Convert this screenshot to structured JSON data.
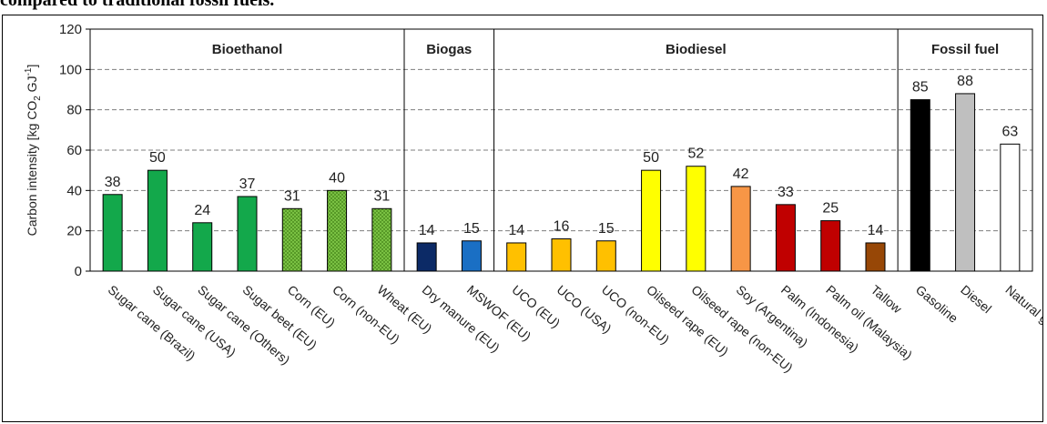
{
  "caption": "compared to traditional fossil fuels.",
  "chart_data": {
    "type": "bar",
    "title": "",
    "xlabel": "",
    "ylabel": "Carbon intensity [kg CO2 GJ-1]",
    "ylabel_parts": {
      "main": "Carbon intensity [kg CO",
      "sub": "2",
      "mid": " GJ",
      "sup": "-1",
      "end": "]"
    },
    "ylim": [
      0,
      120
    ],
    "yticks": [
      "0",
      "20",
      "40",
      "60",
      "80",
      "100",
      "120"
    ],
    "grid": "dashed horizontal",
    "groups": [
      {
        "name": "Bioethanol",
        "start": 0,
        "end": 6
      },
      {
        "name": "Biogas",
        "start": 7,
        "end": 8
      },
      {
        "name": "Biodiesel",
        "start": 9,
        "end": 17
      },
      {
        "name": "Fossil fuel",
        "start": 18,
        "end": 20
      }
    ],
    "categories": [
      "Sugar cane (Brazil)",
      "Sugar cane (USA)",
      "Sugar cane (Others)",
      "Sugar beet (EU)",
      "Corn (EU)",
      "Corn (non-EU)",
      "Wheat (EU)",
      "Dry manure (EU)",
      "MSWOF (EU)",
      "UCO (EU)",
      "UCO (USA)",
      "UCO (non-EU)",
      "Oilseed rape (EU)",
      "Oilseed rape (non-EU)",
      "Soy (Argentina)",
      "Palm (Indonesia)",
      "Palm oil (Malaysia)",
      "Tallow",
      "Gasoline",
      "Diesel",
      "Natural gas"
    ],
    "values": [
      38,
      50,
      24,
      37,
      31,
      40,
      31,
      14,
      15,
      14,
      16,
      15,
      50,
      52,
      42,
      33,
      25,
      14,
      85,
      88,
      63
    ],
    "data_labels": [
      "38",
      "50",
      "24",
      "37",
      "31",
      "40",
      "31",
      "14",
      "15",
      "14",
      "16",
      "15",
      "50",
      "52",
      "42",
      "33",
      "25",
      "14",
      "85",
      "88",
      "63"
    ],
    "colors": [
      "#13a84b",
      "#13a84b",
      "#13a84b",
      "#13a84b",
      "#7ac143",
      "#7ac143",
      "#7ac143",
      "#0c2a66",
      "#1a6fc4",
      "#ffc000",
      "#ffc000",
      "#ffc000",
      "#ffff00",
      "#ffff00",
      "#f79646",
      "#c00000",
      "#c00000",
      "#974706",
      "#000000",
      "#bfbfbf",
      "#ffffff"
    ],
    "patterned": [
      false,
      false,
      false,
      false,
      true,
      true,
      true,
      false,
      false,
      false,
      false,
      false,
      false,
      false,
      false,
      false,
      false,
      false,
      false,
      false,
      false
    ]
  }
}
